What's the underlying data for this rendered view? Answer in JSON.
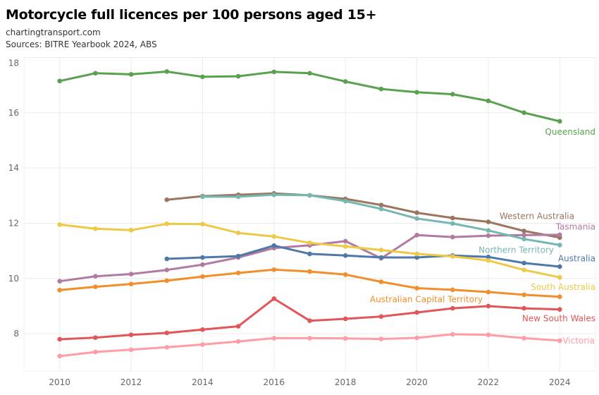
{
  "header": {
    "title": "Motorcycle full licences per 100 persons aged 15+",
    "site": "chartingtransport.com",
    "sources": "Sources: BITRE Yearbook 2024, ABS"
  },
  "chart_data": {
    "type": "line",
    "title": "Motorcycle full licences per 100 persons aged 15+",
    "subtitle": "chartingtransport.com / Sources: BITRE Yearbook 2024, ABS",
    "xlabel": "",
    "ylabel": "",
    "xlim": [
      2009,
      2025
    ],
    "ylim": [
      6.65,
      18
    ],
    "grid": true,
    "legend": "direct-labels-right",
    "x_ticks": [
      2010,
      2012,
      2014,
      2016,
      2018,
      2020,
      2022,
      2024
    ],
    "y_ticks": [
      8,
      10,
      12,
      14,
      16,
      18
    ],
    "x": [
      2010,
      2011,
      2012,
      2013,
      2014,
      2015,
      2016,
      2017,
      2018,
      2019,
      2020,
      2021,
      2022,
      2023,
      2024
    ],
    "series": [
      {
        "name": "Queensland",
        "color": "#59a14f",
        "label_y": 15.3,
        "label_anchor": "end",
        "values": [
          17.15,
          17.43,
          17.39,
          17.49,
          17.3,
          17.32,
          17.48,
          17.43,
          17.13,
          16.86,
          16.74,
          16.67,
          16.43,
          16.0,
          15.69
        ]
      },
      {
        "name": "Western Australia",
        "color": "#9c755f",
        "label_y": 12.25,
        "label_anchor": "end-inset",
        "values": [
          null,
          null,
          null,
          12.85,
          12.98,
          13.03,
          13.08,
          13.01,
          12.88,
          12.66,
          12.38,
          12.19,
          12.05,
          11.72,
          11.48
        ]
      },
      {
        "name": "Tasmania",
        "color": "#b07aa1",
        "label_y": 11.87,
        "label_anchor": "end",
        "values": [
          9.9,
          10.08,
          10.16,
          10.31,
          10.5,
          10.76,
          11.1,
          11.2,
          11.35,
          10.73,
          11.57,
          11.5,
          11.55,
          11.57,
          11.58
        ]
      },
      {
        "name": "Northern Territory",
        "color": "#76b7b2",
        "label_y": 11.03,
        "label_anchor": "end-inset2",
        "values": [
          null,
          null,
          null,
          null,
          12.96,
          12.96,
          13.03,
          13.01,
          12.8,
          12.52,
          12.17,
          11.99,
          11.74,
          11.43,
          11.21
        ]
      },
      {
        "name": "Australia",
        "color": "#4e79a7",
        "label_y": 10.72,
        "label_anchor": "end",
        "values": [
          null,
          null,
          null,
          10.71,
          10.76,
          10.81,
          11.19,
          10.89,
          10.83,
          10.76,
          10.76,
          10.83,
          10.78,
          10.56,
          10.43
        ]
      },
      {
        "name": "South Australia",
        "color": "#edc948",
        "label_y": 9.69,
        "label_anchor": "end",
        "values": [
          11.95,
          11.8,
          11.75,
          11.98,
          11.97,
          11.65,
          11.52,
          11.29,
          11.16,
          11.03,
          10.89,
          10.8,
          10.65,
          10.31,
          10.04
        ]
      },
      {
        "name": "Australian Capital Territory",
        "color": "#f28e2b",
        "label_y": 9.24,
        "label_anchor": "end-inset3",
        "values": [
          9.58,
          9.7,
          9.8,
          9.92,
          10.07,
          10.2,
          10.32,
          10.25,
          10.14,
          9.88,
          9.65,
          9.59,
          9.51,
          9.41,
          9.34
        ]
      },
      {
        "name": "New South Wales",
        "color": "#e15759",
        "label_y": 8.55,
        "label_anchor": "end",
        "values": [
          7.8,
          7.86,
          7.96,
          8.03,
          8.15,
          8.27,
          9.27,
          8.47,
          8.54,
          8.62,
          8.77,
          8.92,
          9.0,
          8.92,
          8.88
        ]
      },
      {
        "name": "Victoria",
        "color": "#ff9da7",
        "label_y": 7.75,
        "label_anchor": "start",
        "values": [
          7.19,
          7.34,
          7.42,
          7.51,
          7.61,
          7.72,
          7.84,
          7.84,
          7.83,
          7.81,
          7.85,
          7.98,
          7.96,
          7.84,
          7.75
        ]
      }
    ]
  }
}
